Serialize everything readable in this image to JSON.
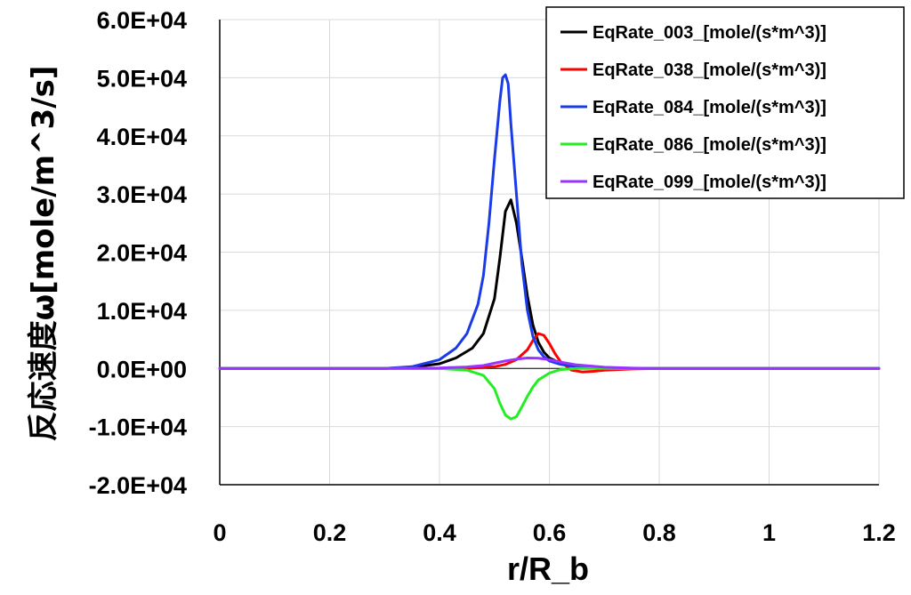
{
  "chart_data": {
    "type": "line",
    "xlabel": "r/R_b",
    "ylabel": "反応速度ω[mole/m^3/s]",
    "xlim": [
      0,
      1.2
    ],
    "ylim": [
      -20000,
      60000
    ],
    "xticks": [
      "0",
      "0.2",
      "0.4",
      "0.6",
      "0.8",
      "1",
      "1.2"
    ],
    "xtick_values": [
      0,
      0.2,
      0.4,
      0.6,
      0.8,
      1.0,
      1.2
    ],
    "yticks": [
      "6.0E+04",
      "5.0E+04",
      "4.0E+04",
      "3.0E+04",
      "2.0E+04",
      "1.0E+04",
      "0.0E+00",
      "-1.0E+04",
      "-2.0E+04"
    ],
    "ytick_values": [
      60000,
      50000,
      40000,
      30000,
      20000,
      10000,
      0,
      -10000,
      -20000
    ],
    "grid": true,
    "legend_position": "top-right",
    "series": [
      {
        "name": "EqRate_003_[mole/(s*m^3)]",
        "color": "#000000",
        "x": [
          0,
          0.3,
          0.35,
          0.4,
          0.43,
          0.46,
          0.48,
          0.5,
          0.51,
          0.52,
          0.53,
          0.54,
          0.55,
          0.56,
          0.57,
          0.58,
          0.59,
          0.6,
          0.62,
          0.65,
          0.7,
          0.8,
          1.0,
          1.2
        ],
        "y": [
          0,
          0,
          200,
          800,
          1800,
          3500,
          6000,
          12000,
          19000,
          27000,
          29000,
          25000,
          19000,
          12500,
          7500,
          4500,
          2800,
          1800,
          900,
          300,
          80,
          0,
          0,
          0
        ]
      },
      {
        "name": "EqRate_038_[mole/(s*m^3)]",
        "color": "#ff0000",
        "x": [
          0,
          0.4,
          0.45,
          0.5,
          0.52,
          0.54,
          0.56,
          0.57,
          0.58,
          0.59,
          0.6,
          0.61,
          0.62,
          0.64,
          0.66,
          0.68,
          0.7,
          0.75,
          0.8,
          1.0,
          1.2
        ],
        "y": [
          0,
          0,
          0,
          300,
          700,
          1500,
          3200,
          4800,
          6000,
          5700,
          4300,
          2600,
          1200,
          -300,
          -600,
          -500,
          -300,
          -100,
          0,
          0,
          0
        ]
      },
      {
        "name": "EqRate_084_[mole/(s*m^3)]",
        "color": "#1a3be8",
        "x": [
          0,
          0.3,
          0.35,
          0.4,
          0.43,
          0.45,
          0.47,
          0.48,
          0.49,
          0.5,
          0.51,
          0.515,
          0.52,
          0.525,
          0.53,
          0.54,
          0.55,
          0.56,
          0.57,
          0.58,
          0.59,
          0.6,
          0.62,
          0.65,
          0.7,
          0.8,
          1.0,
          1.2
        ],
        "y": [
          0,
          0,
          300,
          1500,
          3500,
          6000,
          11000,
          16000,
          25000,
          36000,
          46000,
          50000,
          50500,
          49000,
          42000,
          30000,
          18000,
          10000,
          5500,
          3200,
          2000,
          1300,
          700,
          250,
          60,
          0,
          0,
          0
        ]
      },
      {
        "name": "EqRate_086_[mole/(s*m^3)]",
        "color": "#22ee22",
        "x": [
          0,
          0.4,
          0.45,
          0.48,
          0.5,
          0.51,
          0.52,
          0.53,
          0.54,
          0.55,
          0.56,
          0.57,
          0.58,
          0.6,
          0.62,
          0.65,
          0.7,
          1.0,
          1.2
        ],
        "y": [
          0,
          0,
          -300,
          -1200,
          -3500,
          -6000,
          -8000,
          -8700,
          -8300,
          -6600,
          -4800,
          -3200,
          -2000,
          -800,
          -200,
          0,
          0,
          0,
          0
        ]
      },
      {
        "name": "EqRate_099_[mole/(s*m^3)]",
        "color": "#9933ff",
        "x": [
          0,
          0.3,
          0.4,
          0.45,
          0.48,
          0.5,
          0.52,
          0.54,
          0.56,
          0.58,
          0.6,
          0.62,
          0.65,
          0.7,
          0.75,
          0.8,
          1.0,
          1.2
        ],
        "y": [
          0,
          0,
          80,
          250,
          500,
          900,
          1300,
          1600,
          1800,
          1750,
          1500,
          1100,
          600,
          200,
          50,
          0,
          0,
          0
        ]
      }
    ]
  }
}
